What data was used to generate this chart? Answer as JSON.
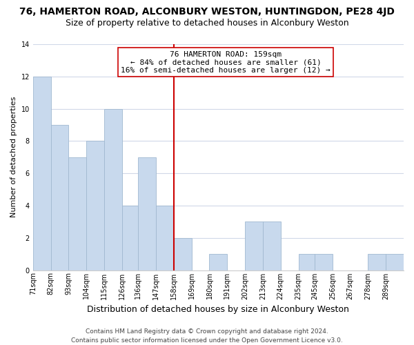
{
  "title": "76, HAMERTON ROAD, ALCONBURY WESTON, HUNTINGDON, PE28 4JD",
  "subtitle": "Size of property relative to detached houses in Alconbury Weston",
  "xlabel": "Distribution of detached houses by size in Alconbury Weston",
  "ylabel": "Number of detached properties",
  "bin_labels": [
    "71sqm",
    "82sqm",
    "93sqm",
    "104sqm",
    "115sqm",
    "126sqm",
    "136sqm",
    "147sqm",
    "158sqm",
    "169sqm",
    "180sqm",
    "191sqm",
    "202sqm",
    "213sqm",
    "224sqm",
    "235sqm",
    "245sqm",
    "256sqm",
    "267sqm",
    "278sqm",
    "289sqm"
  ],
  "bin_edges": [
    71,
    82,
    93,
    104,
    115,
    126,
    136,
    147,
    158,
    169,
    180,
    191,
    202,
    213,
    224,
    235,
    245,
    256,
    267,
    278,
    289,
    300
  ],
  "counts": [
    12,
    9,
    7,
    8,
    10,
    4,
    7,
    4,
    2,
    0,
    1,
    0,
    3,
    3,
    0,
    1,
    1,
    0,
    0,
    1,
    1
  ],
  "bar_color": "#c8d9ed",
  "bar_edgecolor": "#a0b8d0",
  "reference_line_x": 158,
  "reference_line_color": "#cc0000",
  "annotation_line1": "76 HAMERTON ROAD: 159sqm",
  "annotation_line2": "← 84% of detached houses are smaller (61)",
  "annotation_line3": "16% of semi-detached houses are larger (12) →",
  "annotation_box_edgecolor": "#cc0000",
  "annotation_box_facecolor": "#ffffff",
  "ylim": [
    0,
    14
  ],
  "yticks": [
    0,
    2,
    4,
    6,
    8,
    10,
    12,
    14
  ],
  "grid_color": "#d0d8e8",
  "background_color": "#ffffff",
  "footer_line1": "Contains HM Land Registry data © Crown copyright and database right 2024.",
  "footer_line2": "Contains public sector information licensed under the Open Government Licence v3.0.",
  "title_fontsize": 10,
  "subtitle_fontsize": 9,
  "xlabel_fontsize": 9,
  "ylabel_fontsize": 8,
  "annotation_fontsize": 8,
  "footer_fontsize": 6.5,
  "tick_fontsize": 7
}
